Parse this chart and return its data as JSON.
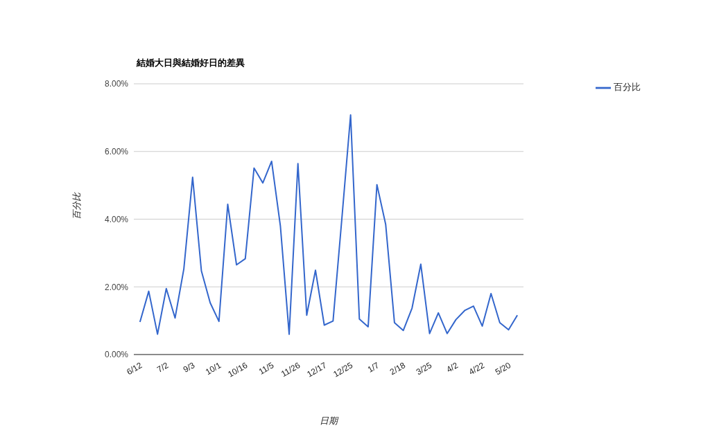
{
  "chart_data": {
    "type": "line",
    "title": "結婚大日與結婚好日的差異",
    "xlabel": "日期",
    "ylabel": "百分比",
    "categories": [
      "6/12",
      null,
      null,
      "7/2",
      null,
      null,
      "9/3",
      null,
      null,
      "10/1",
      null,
      null,
      "10/16",
      null,
      null,
      "11/5",
      null,
      null,
      "11/26",
      null,
      null,
      "12/17",
      null,
      null,
      "12/25",
      null,
      null,
      "1/7",
      null,
      null,
      "2/18",
      null,
      null,
      "3/25",
      null,
      null,
      "4/2",
      null,
      null,
      "4/22",
      null,
      null,
      "5/20",
      null
    ],
    "series": [
      {
        "name": "百分比",
        "color": "#3366cc",
        "values": [
          0.96,
          1.87,
          0.6,
          1.95,
          1.08,
          2.53,
          5.24,
          2.47,
          1.53,
          0.98,
          4.44,
          2.65,
          2.83,
          5.51,
          5.07,
          5.71,
          3.8,
          0.6,
          5.64,
          1.16,
          2.49,
          0.87,
          0.99,
          4.0,
          7.08,
          1.05,
          0.82,
          5.02,
          3.84,
          0.94,
          0.71,
          1.37,
          2.67,
          0.62,
          1.23,
          0.62,
          1.03,
          1.3,
          1.43,
          0.84,
          1.8,
          0.94,
          0.73,
          1.16
        ]
      }
    ],
    "ylim": [
      0,
      8
    ],
    "yticks": [
      {
        "value": 0,
        "label": "0.00%"
      },
      {
        "value": 2,
        "label": "2.00%"
      },
      {
        "value": 4,
        "label": "4.00%"
      },
      {
        "value": 6,
        "label": "6.00%"
      },
      {
        "value": 8,
        "label": "8.00%"
      }
    ],
    "grid": "y",
    "legend": "top right",
    "marker": "none",
    "line_style": "solid"
  }
}
